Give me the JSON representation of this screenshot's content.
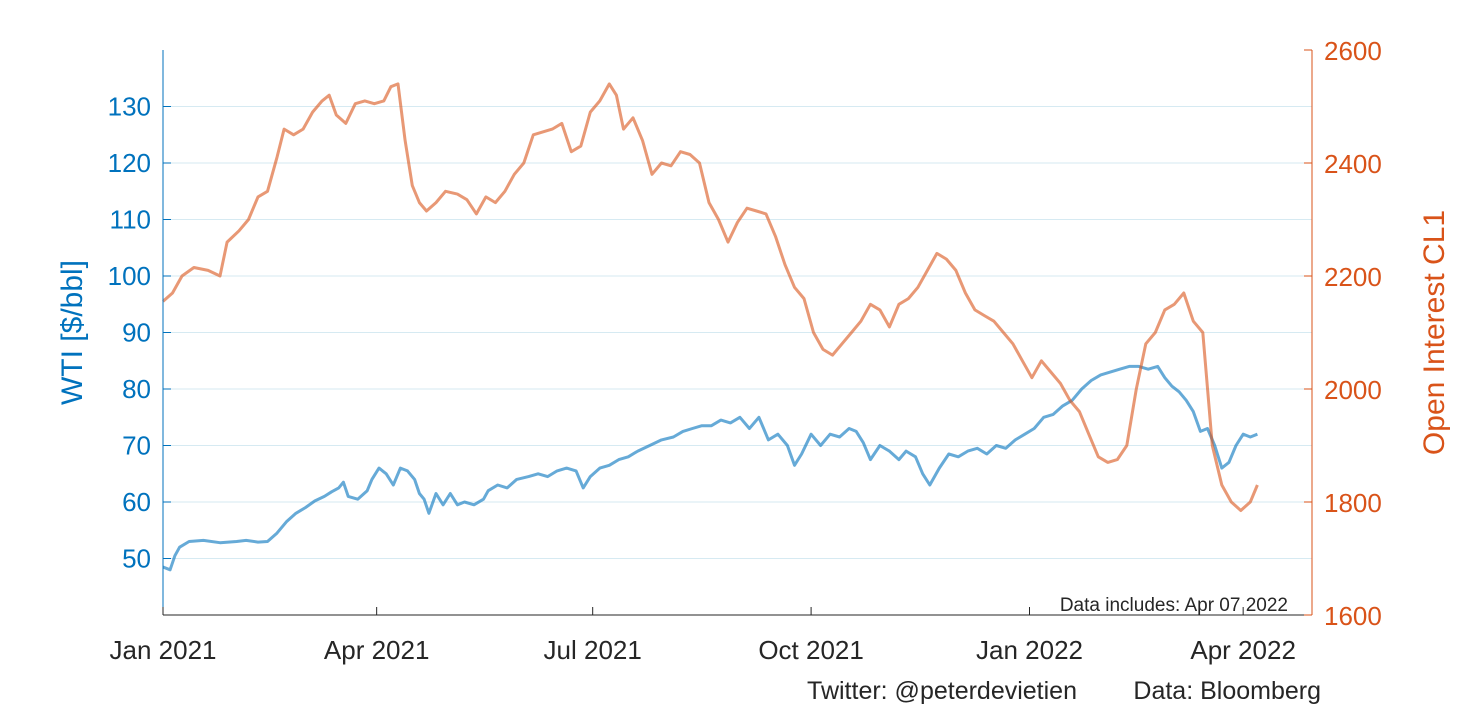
{
  "colors": {
    "wti": "#0072BD",
    "oi": "#D95319",
    "grid": "#D6EAF2",
    "text": "#262626"
  },
  "chart_data": {
    "type": "line",
    "left_axis": {
      "label": "WTI [$/bbl]",
      "ylim": [
        40,
        140
      ],
      "ticks": [
        50,
        60,
        70,
        80,
        90,
        100,
        110,
        120,
        130
      ]
    },
    "right_axis": {
      "label": "Open Interest CL1",
      "ylim": [
        1600,
        2600
      ],
      "ticks": [
        1600,
        1800,
        2000,
        2200,
        2400,
        2600
      ]
    },
    "x_axis": {
      "range": [
        "2021-01-01",
        "2022-04-30"
      ],
      "ticks": [
        {
          "date": "2021-01-01",
          "label": "Jan 2021"
        },
        {
          "date": "2021-04-01",
          "label": "Apr 2021"
        },
        {
          "date": "2021-07-01",
          "label": "Jul 2021"
        },
        {
          "date": "2021-10-01",
          "label": "Oct 2021"
        },
        {
          "date": "2022-01-01",
          "label": "Jan 2022"
        },
        {
          "date": "2022-04-01",
          "label": "Apr 2022"
        }
      ]
    },
    "grid": true,
    "annotation": "Data includes: Apr 07 2022",
    "series": [
      {
        "name": "WTI [$/bbl]",
        "axis": "left",
        "points": [
          [
            "2021-01-01",
            48.5
          ],
          [
            "2021-01-04",
            48.0
          ],
          [
            "2021-01-06",
            50.5
          ],
          [
            "2021-01-08",
            52.0
          ],
          [
            "2021-01-12",
            53.0
          ],
          [
            "2021-01-18",
            53.2
          ],
          [
            "2021-01-25",
            52.8
          ],
          [
            "2021-02-01",
            53.0
          ],
          [
            "2021-02-05",
            53.2
          ],
          [
            "2021-02-10",
            52.9
          ],
          [
            "2021-02-14",
            53.0
          ],
          [
            "2021-02-18",
            54.5
          ],
          [
            "2021-02-22",
            56.5
          ],
          [
            "2021-02-26",
            58.0
          ],
          [
            "2021-03-02",
            59.0
          ],
          [
            "2021-03-06",
            60.2
          ],
          [
            "2021-03-10",
            61.0
          ],
          [
            "2021-03-13",
            61.8
          ],
          [
            "2021-03-16",
            62.5
          ],
          [
            "2021-03-18",
            63.5
          ],
          [
            "2021-03-20",
            61.0
          ],
          [
            "2021-03-24",
            60.5
          ],
          [
            "2021-03-28",
            62.0
          ],
          [
            "2021-03-30",
            64.0
          ],
          [
            "2021-04-02",
            66.0
          ],
          [
            "2021-04-05",
            65.0
          ],
          [
            "2021-04-08",
            63.0
          ],
          [
            "2021-04-11",
            66.0
          ],
          [
            "2021-04-14",
            65.5
          ],
          [
            "2021-04-17",
            64.0
          ],
          [
            "2021-04-19",
            61.5
          ],
          [
            "2021-04-21",
            60.5
          ],
          [
            "2021-04-23",
            58.0
          ],
          [
            "2021-04-26",
            61.5
          ],
          [
            "2021-04-29",
            59.5
          ],
          [
            "2021-05-02",
            61.5
          ],
          [
            "2021-05-05",
            59.5
          ],
          [
            "2021-05-08",
            60.0
          ],
          [
            "2021-05-12",
            59.5
          ],
          [
            "2021-05-16",
            60.5
          ],
          [
            "2021-05-18",
            62.0
          ],
          [
            "2021-05-22",
            63.0
          ],
          [
            "2021-05-26",
            62.5
          ],
          [
            "2021-05-30",
            64.0
          ],
          [
            "2021-06-04",
            64.5
          ],
          [
            "2021-06-08",
            65.0
          ],
          [
            "2021-06-12",
            64.5
          ],
          [
            "2021-06-16",
            65.5
          ],
          [
            "2021-06-20",
            66.0
          ],
          [
            "2021-06-24",
            65.5
          ],
          [
            "2021-06-27",
            62.5
          ],
          [
            "2021-06-30",
            64.5
          ],
          [
            "2021-07-04",
            66.0
          ],
          [
            "2021-07-08",
            66.5
          ],
          [
            "2021-07-12",
            67.5
          ],
          [
            "2021-07-16",
            68.0
          ],
          [
            "2021-07-20",
            69.0
          ],
          [
            "2021-07-25",
            70.0
          ],
          [
            "2021-07-30",
            71.0
          ],
          [
            "2021-08-04",
            71.5
          ],
          [
            "2021-08-08",
            72.5
          ],
          [
            "2021-08-12",
            73.0
          ],
          [
            "2021-08-16",
            73.5
          ],
          [
            "2021-08-20",
            73.5
          ],
          [
            "2021-08-24",
            74.5
          ],
          [
            "2021-08-28",
            74.0
          ],
          [
            "2021-09-01",
            75.0
          ],
          [
            "2021-09-05",
            73.0
          ],
          [
            "2021-09-09",
            75.0
          ],
          [
            "2021-09-13",
            71.0
          ],
          [
            "2021-09-17",
            72.0
          ],
          [
            "2021-09-21",
            70.0
          ],
          [
            "2021-09-24",
            66.5
          ],
          [
            "2021-09-27",
            68.5
          ],
          [
            "2021-10-01",
            72.0
          ],
          [
            "2021-10-05",
            70.0
          ],
          [
            "2021-10-09",
            72.0
          ],
          [
            "2021-10-13",
            71.5
          ],
          [
            "2021-10-17",
            73.0
          ],
          [
            "2021-10-20",
            72.5
          ],
          [
            "2021-10-23",
            70.5
          ],
          [
            "2021-10-26",
            67.5
          ],
          [
            "2021-10-30",
            70.0
          ],
          [
            "2021-11-03",
            69.0
          ],
          [
            "2021-11-07",
            67.5
          ],
          [
            "2021-11-10",
            69.0
          ],
          [
            "2021-11-14",
            68.0
          ],
          [
            "2021-11-17",
            65.0
          ],
          [
            "2021-11-20",
            63.0
          ],
          [
            "2021-11-24",
            66.0
          ],
          [
            "2021-11-28",
            68.5
          ],
          [
            "2021-12-02",
            68.0
          ],
          [
            "2021-12-06",
            69.0
          ],
          [
            "2021-12-10",
            69.5
          ],
          [
            "2021-12-14",
            68.5
          ],
          [
            "2021-12-18",
            70.0
          ],
          [
            "2021-12-22",
            69.5
          ],
          [
            "2021-12-26",
            71.0
          ],
          [
            "2021-12-30",
            72.0
          ],
          [
            "2022-01-03",
            73.0
          ],
          [
            "2022-01-07",
            75.0
          ],
          [
            "2022-01-11",
            75.5
          ],
          [
            "2022-01-15",
            77.0
          ],
          [
            "2022-01-19",
            78.0
          ],
          [
            "2022-01-23",
            80.0
          ],
          [
            "2022-01-27",
            81.5
          ],
          [
            "2022-01-31",
            82.5
          ],
          [
            "2022-02-04",
            83.0
          ],
          [
            "2022-02-08",
            83.5
          ],
          [
            "2022-02-12",
            84.0
          ],
          [
            "2022-02-16",
            84.0
          ],
          [
            "2022-02-20",
            83.5
          ],
          [
            "2022-02-24",
            84.0
          ],
          [
            "2022-02-27",
            82.0
          ],
          [
            "2022-03-02",
            80.5
          ],
          [
            "2022-03-05",
            79.5
          ],
          [
            "2022-03-08",
            78.0
          ],
          [
            "2022-03-11",
            76.0
          ],
          [
            "2022-03-14",
            72.5
          ],
          [
            "2022-03-17",
            73.0
          ],
          [
            "2022-03-20",
            70.0
          ],
          [
            "2022-03-23",
            66.0
          ],
          [
            "2022-03-26",
            67.0
          ],
          [
            "2022-03-29",
            70.0
          ],
          [
            "2022-04-01",
            72.0
          ],
          [
            "2022-04-04",
            71.5
          ],
          [
            "2022-04-07",
            72.0
          ]
        ]
      },
      {
        "name": "Open Interest CL1",
        "axis": "right",
        "points": [
          [
            "2021-01-01",
            2155
          ],
          [
            "2021-01-05",
            2170
          ],
          [
            "2021-01-09",
            2200
          ],
          [
            "2021-01-14",
            2215
          ],
          [
            "2021-01-20",
            2210
          ],
          [
            "2021-01-25",
            2200
          ],
          [
            "2021-01-28",
            2260
          ],
          [
            "2021-02-02",
            2280
          ],
          [
            "2021-02-06",
            2300
          ],
          [
            "2021-02-10",
            2340
          ],
          [
            "2021-02-14",
            2350
          ],
          [
            "2021-02-18",
            2410
          ],
          [
            "2021-02-21",
            2460
          ],
          [
            "2021-02-25",
            2450
          ],
          [
            "2021-03-01",
            2460
          ],
          [
            "2021-03-05",
            2490
          ],
          [
            "2021-03-09",
            2510
          ],
          [
            "2021-03-12",
            2520
          ],
          [
            "2021-03-15",
            2485
          ],
          [
            "2021-03-19",
            2470
          ],
          [
            "2021-03-23",
            2505
          ],
          [
            "2021-03-27",
            2510
          ],
          [
            "2021-03-31",
            2505
          ],
          [
            "2021-04-04",
            2510
          ],
          [
            "2021-04-07",
            2535
          ],
          [
            "2021-04-10",
            2540
          ],
          [
            "2021-04-13",
            2440
          ],
          [
            "2021-04-16",
            2360
          ],
          [
            "2021-04-19",
            2330
          ],
          [
            "2021-04-22",
            2315
          ],
          [
            "2021-04-26",
            2330
          ],
          [
            "2021-04-30",
            2350
          ],
          [
            "2021-05-05",
            2345
          ],
          [
            "2021-05-09",
            2335
          ],
          [
            "2021-05-13",
            2310
          ],
          [
            "2021-05-17",
            2340
          ],
          [
            "2021-05-21",
            2330
          ],
          [
            "2021-05-25",
            2350
          ],
          [
            "2021-05-29",
            2380
          ],
          [
            "2021-06-02",
            2400
          ],
          [
            "2021-06-06",
            2450
          ],
          [
            "2021-06-10",
            2455
          ],
          [
            "2021-06-14",
            2460
          ],
          [
            "2021-06-18",
            2470
          ],
          [
            "2021-06-22",
            2420
          ],
          [
            "2021-06-26",
            2430
          ],
          [
            "2021-06-30",
            2490
          ],
          [
            "2021-07-04",
            2510
          ],
          [
            "2021-07-08",
            2540
          ],
          [
            "2021-07-11",
            2520
          ],
          [
            "2021-07-14",
            2460
          ],
          [
            "2021-07-18",
            2480
          ],
          [
            "2021-07-22",
            2440
          ],
          [
            "2021-07-26",
            2380
          ],
          [
            "2021-07-30",
            2400
          ],
          [
            "2021-08-03",
            2395
          ],
          [
            "2021-08-07",
            2420
          ],
          [
            "2021-08-11",
            2415
          ],
          [
            "2021-08-15",
            2400
          ],
          [
            "2021-08-19",
            2330
          ],
          [
            "2021-08-23",
            2300
          ],
          [
            "2021-08-27",
            2260
          ],
          [
            "2021-08-31",
            2295
          ],
          [
            "2021-09-04",
            2320
          ],
          [
            "2021-09-08",
            2315
          ],
          [
            "2021-09-12",
            2310
          ],
          [
            "2021-09-16",
            2270
          ],
          [
            "2021-09-20",
            2220
          ],
          [
            "2021-09-24",
            2180
          ],
          [
            "2021-09-28",
            2160
          ],
          [
            "2021-10-02",
            2100
          ],
          [
            "2021-10-06",
            2070
          ],
          [
            "2021-10-10",
            2060
          ],
          [
            "2021-10-14",
            2080
          ],
          [
            "2021-10-18",
            2100
          ],
          [
            "2021-10-22",
            2120
          ],
          [
            "2021-10-26",
            2150
          ],
          [
            "2021-10-30",
            2140
          ],
          [
            "2021-11-03",
            2110
          ],
          [
            "2021-11-07",
            2150
          ],
          [
            "2021-11-11",
            2160
          ],
          [
            "2021-11-15",
            2180
          ],
          [
            "2021-11-19",
            2210
          ],
          [
            "2021-11-23",
            2240
          ],
          [
            "2021-11-27",
            2230
          ],
          [
            "2021-12-01",
            2210
          ],
          [
            "2021-12-05",
            2170
          ],
          [
            "2021-12-09",
            2140
          ],
          [
            "2021-12-13",
            2130
          ],
          [
            "2021-12-17",
            2120
          ],
          [
            "2021-12-21",
            2100
          ],
          [
            "2021-12-25",
            2080
          ],
          [
            "2021-12-29",
            2050
          ],
          [
            "2022-01-02",
            2020
          ],
          [
            "2022-01-06",
            2050
          ],
          [
            "2022-01-10",
            2030
          ],
          [
            "2022-01-14",
            2010
          ],
          [
            "2022-01-18",
            1980
          ],
          [
            "2022-01-22",
            1960
          ],
          [
            "2022-01-26",
            1920
          ],
          [
            "2022-01-30",
            1880
          ],
          [
            "2022-02-03",
            1870
          ],
          [
            "2022-02-07",
            1875
          ],
          [
            "2022-02-11",
            1900
          ],
          [
            "2022-02-15",
            2000
          ],
          [
            "2022-02-19",
            2080
          ],
          [
            "2022-02-23",
            2100
          ],
          [
            "2022-02-27",
            2140
          ],
          [
            "2022-03-03",
            2150
          ],
          [
            "2022-03-07",
            2170
          ],
          [
            "2022-03-11",
            2120
          ],
          [
            "2022-03-15",
            2100
          ],
          [
            "2022-03-19",
            1900
          ],
          [
            "2022-03-23",
            1830
          ],
          [
            "2022-03-27",
            1800
          ],
          [
            "2022-03-31",
            1785
          ],
          [
            "2022-04-04",
            1800
          ],
          [
            "2022-04-07",
            1830
          ]
        ]
      }
    ]
  },
  "footer": {
    "twitter": "Twitter: @peterdevietien",
    "source": "Data: Bloomberg"
  }
}
